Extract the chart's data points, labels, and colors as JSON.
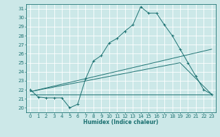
{
  "xlabel": "Humidex (Indice chaleur)",
  "bg_color": "#cce8e8",
  "grid_color": "#ffffff",
  "line_color": "#1a7070",
  "xlim": [
    -0.5,
    23.5
  ],
  "ylim": [
    19.5,
    31.5
  ],
  "yticks": [
    20,
    21,
    22,
    23,
    24,
    25,
    26,
    27,
    28,
    29,
    30,
    31
  ],
  "xticks": [
    0,
    1,
    2,
    3,
    4,
    5,
    6,
    7,
    8,
    9,
    10,
    11,
    12,
    13,
    14,
    15,
    16,
    17,
    18,
    19,
    20,
    21,
    22,
    23
  ],
  "line1_x": [
    0,
    1,
    2,
    3,
    4,
    5,
    6,
    7,
    8,
    9,
    10,
    11,
    12,
    13,
    14,
    15,
    16,
    17,
    18,
    19,
    20,
    21,
    22,
    23
  ],
  "line1_y": [
    22,
    21.2,
    21.1,
    21.1,
    21.1,
    20.0,
    20.4,
    23.2,
    25.2,
    25.8,
    27.2,
    27.7,
    28.5,
    29.2,
    31.2,
    30.5,
    30.5,
    29.2,
    28.0,
    26.5,
    25.0,
    23.5,
    22.0,
    21.5
  ],
  "line2_x": [
    0,
    23
  ],
  "line2_y": [
    21.5,
    21.5
  ],
  "line3_x": [
    0,
    23
  ],
  "line3_y": [
    21.8,
    26.5
  ],
  "line4_x": [
    0,
    19,
    23
  ],
  "line4_y": [
    21.8,
    25.0,
    21.5
  ]
}
